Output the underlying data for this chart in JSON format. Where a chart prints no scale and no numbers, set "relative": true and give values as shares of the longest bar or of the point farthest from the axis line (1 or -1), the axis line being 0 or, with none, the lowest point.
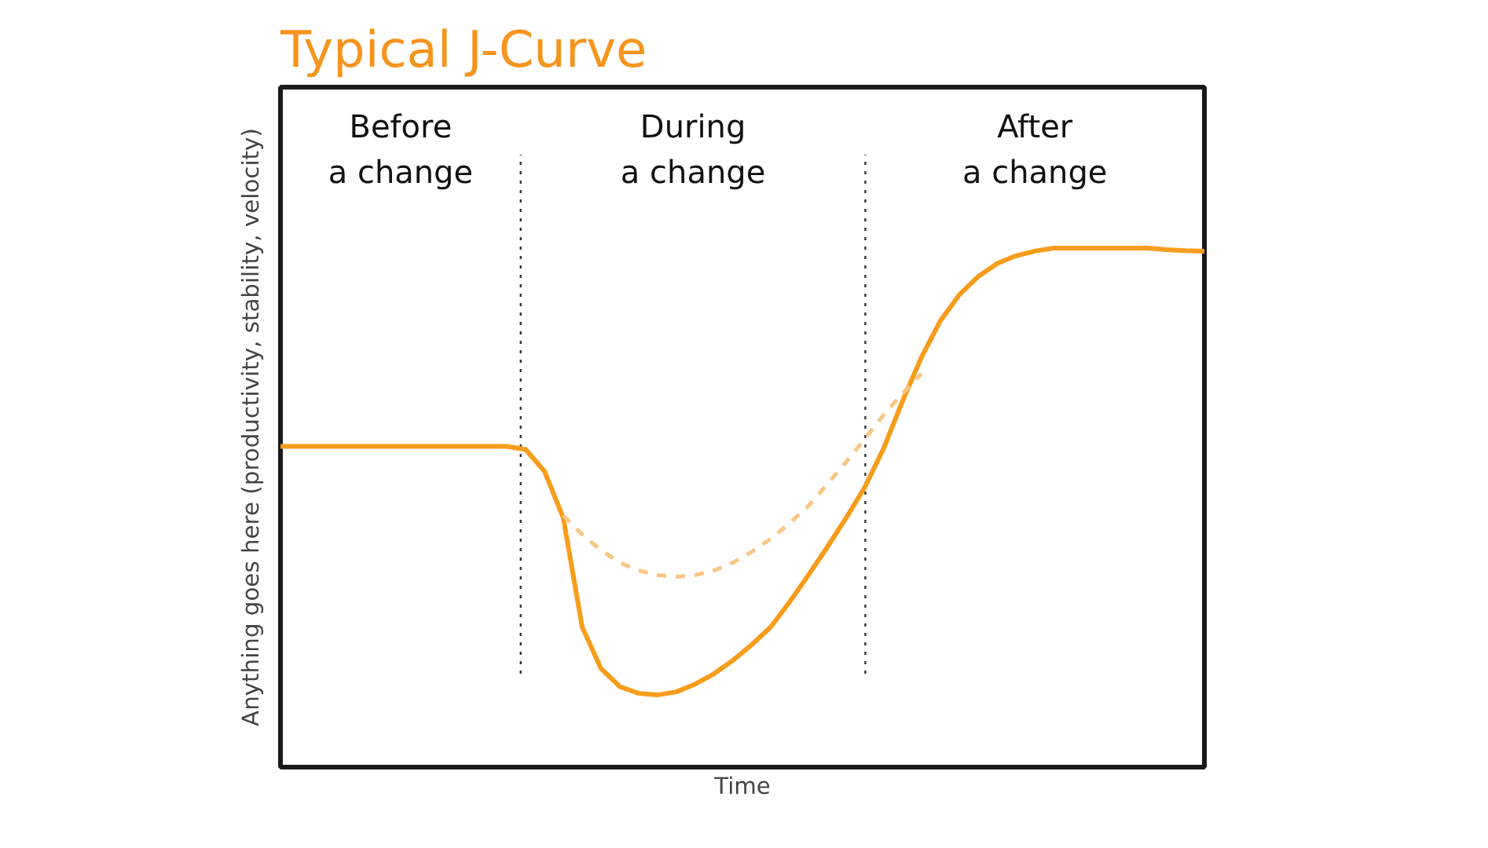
{
  "chart_data": {
    "type": "line",
    "title": "Typical J-Curve",
    "xlabel": "Time",
    "ylabel": "Anything goes here (productivity, stability, velocity)",
    "relative": true,
    "tick_labels": false,
    "categories": [
      null,
      null,
      null,
      null,
      null,
      null,
      null,
      null,
      null,
      null,
      null,
      null,
      null,
      null,
      null,
      null,
      null,
      null,
      null,
      null,
      null,
      null,
      null,
      null,
      null,
      null,
      null,
      null,
      null,
      null,
      null,
      null,
      null,
      null,
      null,
      null,
      null,
      null,
      null,
      null,
      null,
      null,
      null,
      null,
      null,
      null,
      null,
      null,
      null,
      null
    ],
    "series": [
      {
        "color": "#f89c1c",
        "line_style": "solid",
        "values": [
          0.618,
          0.618,
          0.618,
          0.618,
          0.618,
          0.618,
          0.618,
          0.618,
          0.618,
          0.618,
          0.618,
          0.618,
          0.618,
          0.612,
          0.57,
          0.48,
          0.27,
          0.19,
          0.155,
          0.142,
          0.139,
          0.145,
          0.16,
          0.18,
          0.206,
          0.236,
          0.27,
          0.318,
          0.37,
          0.424,
          0.48,
          0.54,
          0.615,
          0.706,
          0.79,
          0.86,
          0.91,
          0.945,
          0.97,
          0.985,
          0.994,
          1.0,
          1.0,
          1.0,
          1.0,
          1.0,
          1.0,
          0.997,
          0.995,
          0.994
        ]
      },
      {
        "color": "#f9c683",
        "line_style": "dashed",
        "values": [
          null,
          null,
          null,
          null,
          null,
          null,
          null,
          null,
          null,
          null,
          null,
          null,
          null,
          null,
          null,
          0.485,
          0.448,
          0.418,
          0.394,
          0.379,
          0.37,
          0.367,
          0.37,
          0.379,
          0.394,
          0.415,
          0.44,
          0.47,
          0.503,
          0.545,
          0.588,
          0.633,
          0.679,
          0.72,
          0.758,
          null,
          null,
          null,
          null,
          null,
          null,
          null,
          null,
          null,
          null,
          null,
          null,
          null,
          null,
          null
        ]
      }
    ],
    "annotations": [
      "Before\na change",
      "During\na change",
      "After\na change"
    ]
  }
}
